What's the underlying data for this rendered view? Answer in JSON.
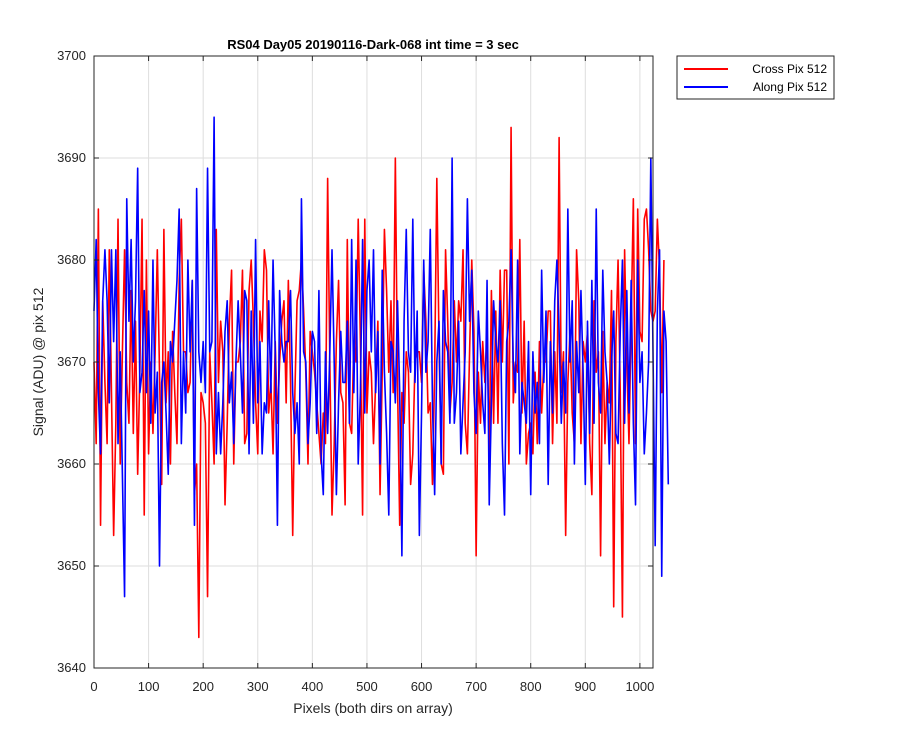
{
  "chart_data": {
    "type": "line",
    "title": "RS04 Day05 20190116-Dark-068 int time = 3 sec",
    "xlabel": "Pixels (both dirs on array)",
    "ylabel": "Signal (ADU) @ pix 512",
    "xlim": [
      0,
      1024
    ],
    "ylim": [
      3640,
      3700
    ],
    "xticks": [
      "0",
      "100",
      "200",
      "300",
      "400",
      "500",
      "600",
      "700",
      "800",
      "900",
      "1000"
    ],
    "yticks": [
      "3640",
      "3650",
      "3660",
      "3670",
      "3680",
      "3690",
      "3700"
    ],
    "grid": true,
    "legend_position": "outside-top-right",
    "x_step": 4,
    "series": [
      {
        "name": "Cross Pix 512",
        "color": "#ff0000",
        "values": [
          3670,
          3662,
          3685,
          3654,
          3676,
          3668,
          3662,
          3681,
          3667,
          3653,
          3664,
          3684,
          3660,
          3671,
          3681,
          3668,
          3664,
          3677,
          3663,
          3674,
          3659,
          3669,
          3684,
          3655,
          3680,
          3661,
          3670,
          3663,
          3671,
          3681,
          3669,
          3658,
          3683,
          3666,
          3671,
          3660,
          3673,
          3667,
          3662,
          3678,
          3684,
          3671,
          3671,
          3667,
          3668,
          3678,
          3657,
          3660,
          3643,
          3667,
          3666,
          3664,
          3647,
          3671,
          3666,
          3660,
          3683,
          3668,
          3674,
          3671,
          3656,
          3664,
          3674,
          3679,
          3660,
          3670,
          3670,
          3672,
          3679,
          3662,
          3663,
          3677,
          3680,
          3674,
          3666,
          3661,
          3675,
          3672,
          3681,
          3679,
          3665,
          3668,
          3661,
          3672,
          3664,
          3670,
          3674,
          3676,
          3666,
          3678,
          3668,
          3653,
          3667,
          3676,
          3677,
          3680,
          3675,
          3669,
          3660,
          3673,
          3671,
          3669,
          3666,
          3663,
          3660,
          3665,
          3662,
          3688,
          3670,
          3655,
          3662,
          3672,
          3678,
          3667,
          3666,
          3656,
          3682,
          3664,
          3663,
          3672,
          3670,
          3684,
          3672,
          3655,
          3684,
          3665,
          3671,
          3669,
          3662,
          3668,
          3674,
          3657,
          3669,
          3683,
          3677,
          3669,
          3676,
          3667,
          3690,
          3668,
          3654,
          3667,
          3664,
          3671,
          3669,
          3658,
          3661,
          3670,
          3671,
          3671,
          3668,
          3679,
          3674,
          3665,
          3666,
          3658,
          3669,
          3688,
          3672,
          3660,
          3659,
          3681,
          3674,
          3665,
          3668,
          3676,
          3670,
          3676,
          3674,
          3681,
          3664,
          3661,
          3671,
          3680,
          3673,
          3651,
          3669,
          3664,
          3672,
          3668,
          3673,
          3661,
          3677,
          3664,
          3675,
          3664,
          3679,
          3670,
          3679,
          3679,
          3660,
          3693,
          3666,
          3670,
          3669,
          3682,
          3665,
          3674,
          3660,
          3663,
          3664,
          3661,
          3669,
          3662,
          3672,
          3665,
          3670,
          3670,
          3675,
          3675,
          3662,
          3671,
          3664,
          3692,
          3667,
          3671,
          3653,
          3668,
          3673,
          3665,
          3662,
          3681,
          3676,
          3662,
          3672,
          3670,
          3673,
          3662,
          3657,
          3676,
          3669,
          3671,
          3651,
          3673,
          3662,
          3668,
          3666,
          3677,
          3646,
          3672,
          3680,
          3667,
          3645,
          3681,
          3670,
          3662,
          3674,
          3686,
          3662,
          3685,
          3673,
          3672,
          3684,
          3685,
          3681,
          3675,
          3674,
          3675,
          3684,
          3679,
          3667,
          3680
        ]
      },
      {
        "name": "Along Pix 512",
        "color": "#0000ff",
        "values": [
          3675,
          3682,
          3667,
          3661,
          3676,
          3681,
          3676,
          3666,
          3681,
          3672,
          3681,
          3662,
          3671,
          3659,
          3647,
          3686,
          3674,
          3682,
          3670,
          3676,
          3689,
          3667,
          3669,
          3677,
          3667,
          3675,
          3664,
          3680,
          3665,
          3669,
          3650,
          3668,
          3670,
          3665,
          3659,
          3672,
          3670,
          3674,
          3678,
          3685,
          3662,
          3671,
          3665,
          3680,
          3671,
          3678,
          3654,
          3687,
          3671,
          3668,
          3672,
          3667,
          3689,
          3671,
          3672,
          3694,
          3661,
          3667,
          3661,
          3666,
          3673,
          3676,
          3666,
          3669,
          3662,
          3670,
          3676,
          3671,
          3665,
          3677,
          3676,
          3661,
          3675,
          3664,
          3682,
          3666,
          3672,
          3661,
          3666,
          3665,
          3676,
          3667,
          3680,
          3671,
          3654,
          3677,
          3672,
          3670,
          3672,
          3672,
          3677,
          3667,
          3663,
          3666,
          3660,
          3686,
          3671,
          3670,
          3662,
          3666,
          3673,
          3672,
          3663,
          3677,
          3661,
          3657,
          3671,
          3663,
          3671,
          3681,
          3670,
          3657,
          3666,
          3673,
          3668,
          3668,
          3674,
          3664,
          3682,
          3667,
          3680,
          3660,
          3667,
          3682,
          3665,
          3677,
          3680,
          3671,
          3681,
          3667,
          3673,
          3660,
          3679,
          3669,
          3663,
          3655,
          3672,
          3671,
          3666,
          3676,
          3667,
          3651,
          3674,
          3683,
          3671,
          3669,
          3684,
          3668,
          3675,
          3653,
          3665,
          3680,
          3669,
          3672,
          3683,
          3666,
          3657,
          3670,
          3674,
          3660,
          3677,
          3672,
          3671,
          3664,
          3690,
          3664,
          3667,
          3674,
          3661,
          3666,
          3671,
          3686,
          3674,
          3679,
          3667,
          3663,
          3675,
          3671,
          3666,
          3663,
          3678,
          3656,
          3666,
          3676,
          3672,
          3670,
          3676,
          3662,
          3655,
          3672,
          3674,
          3681,
          3670,
          3667,
          3680,
          3661,
          3668,
          3666,
          3664,
          3672,
          3657,
          3671,
          3665,
          3668,
          3662,
          3679,
          3668,
          3675,
          3658,
          3672,
          3665,
          3676,
          3680,
          3673,
          3664,
          3670,
          3665,
          3685,
          3670,
          3676,
          3660,
          3672,
          3667,
          3677,
          3669,
          3658,
          3674,
          3663,
          3678,
          3664,
          3685,
          3668,
          3665,
          3679,
          3671,
          3668,
          3660,
          3670,
          3675,
          3663,
          3662,
          3673,
          3680,
          3664,
          3677,
          3665,
          3678,
          3664,
          3656,
          3680,
          3668,
          3671,
          3661,
          3665,
          3670,
          3690,
          3671,
          3652,
          3675,
          3681,
          3649,
          3675,
          3672,
          3658
        ]
      }
    ]
  }
}
